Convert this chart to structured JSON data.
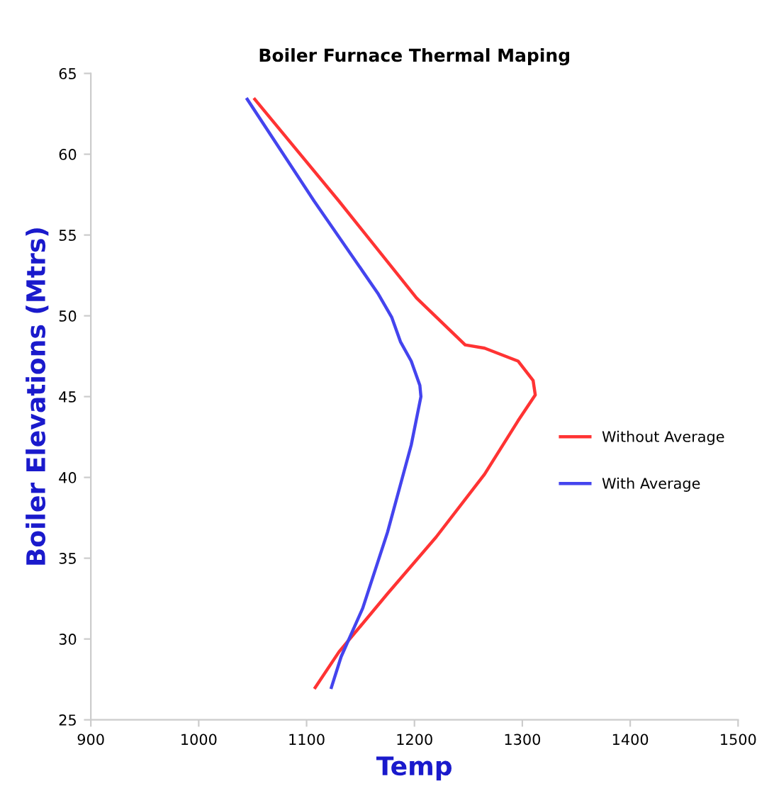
{
  "chart_data": {
    "type": "line",
    "title": "Boiler Furnace Thermal Maping",
    "xlabel": "Temp",
    "ylabel": "Boiler Elevations (Mtrs)",
    "xlim": [
      900,
      1500
    ],
    "xticks": [
      900,
      1000,
      1100,
      1200,
      1300,
      1400,
      1500
    ],
    "ylim": [
      25,
      65
    ],
    "yticks": [
      25,
      30,
      35,
      40,
      45,
      50,
      55,
      60,
      65
    ],
    "grid": false,
    "legend": "right",
    "marker": "none",
    "line_style": "solid",
    "series": [
      {
        "name": "Without Average",
        "color": "#ff3333",
        "x": [
          1052,
          1130,
          1202,
          1247,
          1265,
          1296,
          1310,
          1312,
          1296,
          1265,
          1220,
          1175,
          1130,
          1108
        ],
        "values": [
          63.4,
          57.1,
          51.1,
          48.2,
          48.0,
          47.2,
          46.0,
          45.1,
          43.5,
          40.2,
          36.3,
          32.8,
          29.2,
          27.0
        ]
      },
      {
        "name": "With Average",
        "color": "#4444ee",
        "x": [
          1045,
          1107,
          1166,
          1179,
          1187,
          1197,
          1205,
          1206,
          1197,
          1175,
          1152,
          1132,
          1123
        ],
        "values": [
          63.4,
          57.1,
          51.4,
          49.9,
          48.4,
          47.2,
          45.7,
          45.0,
          42.0,
          36.6,
          31.9,
          28.9,
          27.0
        ]
      }
    ]
  }
}
